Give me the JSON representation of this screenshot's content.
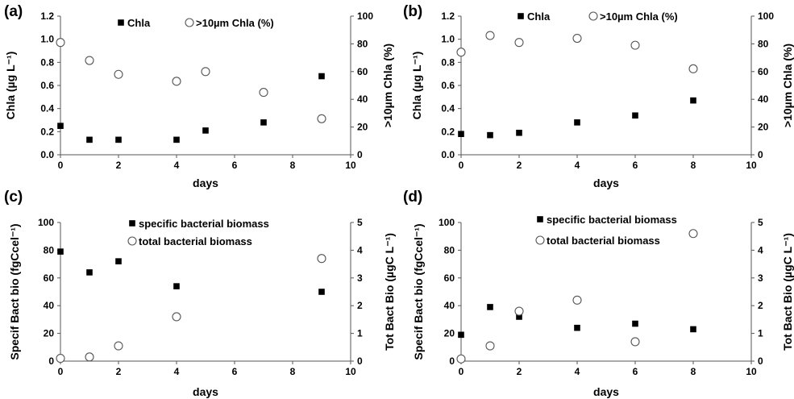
{
  "chart_data": [
    {
      "panel": "(a)",
      "type": "scatter",
      "xlabel": "days",
      "ylabel": "Chla (µg L⁻¹)",
      "y2label": ">10µm Chla (%)",
      "xlim": [
        0,
        10
      ],
      "xticks": [
        0,
        2,
        4,
        6,
        8,
        10
      ],
      "ylim": [
        0,
        1.2
      ],
      "yticks": [
        0.0,
        0.2,
        0.4,
        0.6,
        0.8,
        1.0,
        1.2
      ],
      "y2lim": [
        0,
        100
      ],
      "y2ticks": [
        0,
        20,
        40,
        60,
        80,
        100
      ],
      "legend_position": "top",
      "series": [
        {
          "name": "Chla",
          "axis": "left",
          "marker": "filled-square",
          "x": [
            0,
            1,
            2,
            4,
            5,
            7,
            9
          ],
          "y": [
            0.25,
            0.13,
            0.13,
            0.13,
            0.21,
            0.28,
            0.68
          ]
        },
        {
          "name": ">10µm Chla (%)",
          "axis": "right",
          "marker": "open-circle",
          "x": [
            0,
            1,
            2,
            4,
            5,
            7,
            9
          ],
          "y": [
            81,
            68,
            58,
            53,
            60,
            45,
            26
          ]
        }
      ]
    },
    {
      "panel": "(b)",
      "type": "scatter",
      "xlabel": "days",
      "ylabel": "Chla (µg L⁻¹)",
      "y2label": ">10µm Chla (%)",
      "xlim": [
        0,
        10
      ],
      "xticks": [
        0,
        2,
        4,
        6,
        8,
        10
      ],
      "ylim": [
        0,
        1.2
      ],
      "yticks": [
        0.0,
        0.2,
        0.4,
        0.6,
        0.8,
        1.0,
        1.2
      ],
      "y2lim": [
        0,
        100
      ],
      "y2ticks": [
        0,
        20,
        40,
        60,
        80,
        100
      ],
      "legend_position": "top",
      "series": [
        {
          "name": "Chla",
          "axis": "left",
          "marker": "filled-square",
          "x": [
            0,
            1,
            2,
            4,
            6,
            8
          ],
          "y": [
            0.18,
            0.17,
            0.19,
            0.28,
            0.34,
            0.47
          ]
        },
        {
          "name": ">10µm Chla (%)",
          "axis": "right",
          "marker": "open-circle",
          "x": [
            0,
            1,
            2,
            4,
            6,
            8
          ],
          "y": [
            74,
            86,
            81,
            84,
            79,
            62
          ]
        }
      ]
    },
    {
      "panel": "(c)",
      "type": "scatter",
      "xlabel": "days",
      "ylabel": "Specif Bact bio (fgCcel⁻¹)",
      "y2label": "Tot Bact Bio (µgC L⁻¹)",
      "xlim": [
        0,
        10
      ],
      "xticks": [
        0,
        2,
        4,
        6,
        8,
        10
      ],
      "ylim": [
        0,
        100
      ],
      "yticks": [
        0,
        20,
        40,
        60,
        80,
        100
      ],
      "y2lim": [
        0,
        5
      ],
      "y2ticks": [
        0,
        1,
        2,
        3,
        4,
        5
      ],
      "legend_position": "top-right",
      "series": [
        {
          "name": "specific bacterial biomass",
          "axis": "left",
          "marker": "filled-square",
          "x": [
            0,
            1,
            2,
            4,
            9
          ],
          "y": [
            79,
            64,
            72,
            54,
            50
          ]
        },
        {
          "name": "total bacterial biomass",
          "axis": "right",
          "marker": "open-circle",
          "x": [
            0,
            1,
            2,
            4,
            9
          ],
          "y": [
            0.1,
            0.15,
            0.55,
            1.6,
            3.7
          ]
        }
      ]
    },
    {
      "panel": "(d)",
      "type": "scatter",
      "xlabel": "days",
      "ylabel": "Specif Bact bio (fgCcel⁻¹)",
      "y2label": "Tot Bact Bio (µgC L⁻¹)",
      "xlim": [
        0,
        10
      ],
      "xticks": [
        0,
        2,
        4,
        6,
        8,
        10
      ],
      "ylim": [
        0,
        100
      ],
      "yticks": [
        0,
        20,
        40,
        60,
        80,
        100
      ],
      "y2lim": [
        0,
        5
      ],
      "y2ticks": [
        0,
        1,
        2,
        3,
        4,
        5
      ],
      "legend_position": "top-right",
      "series": [
        {
          "name": "specific bacterial biomass",
          "axis": "left",
          "marker": "filled-square",
          "x": [
            0,
            1,
            2,
            4,
            6,
            8
          ],
          "y": [
            19,
            39,
            32,
            24,
            27,
            23
          ]
        },
        {
          "name": "total bacterial biomass",
          "axis": "right",
          "marker": "open-circle",
          "x": [
            0,
            1,
            2,
            4,
            6,
            8
          ],
          "y": [
            0.08,
            0.55,
            1.8,
            2.2,
            0.7,
            4.6
          ]
        }
      ]
    }
  ]
}
